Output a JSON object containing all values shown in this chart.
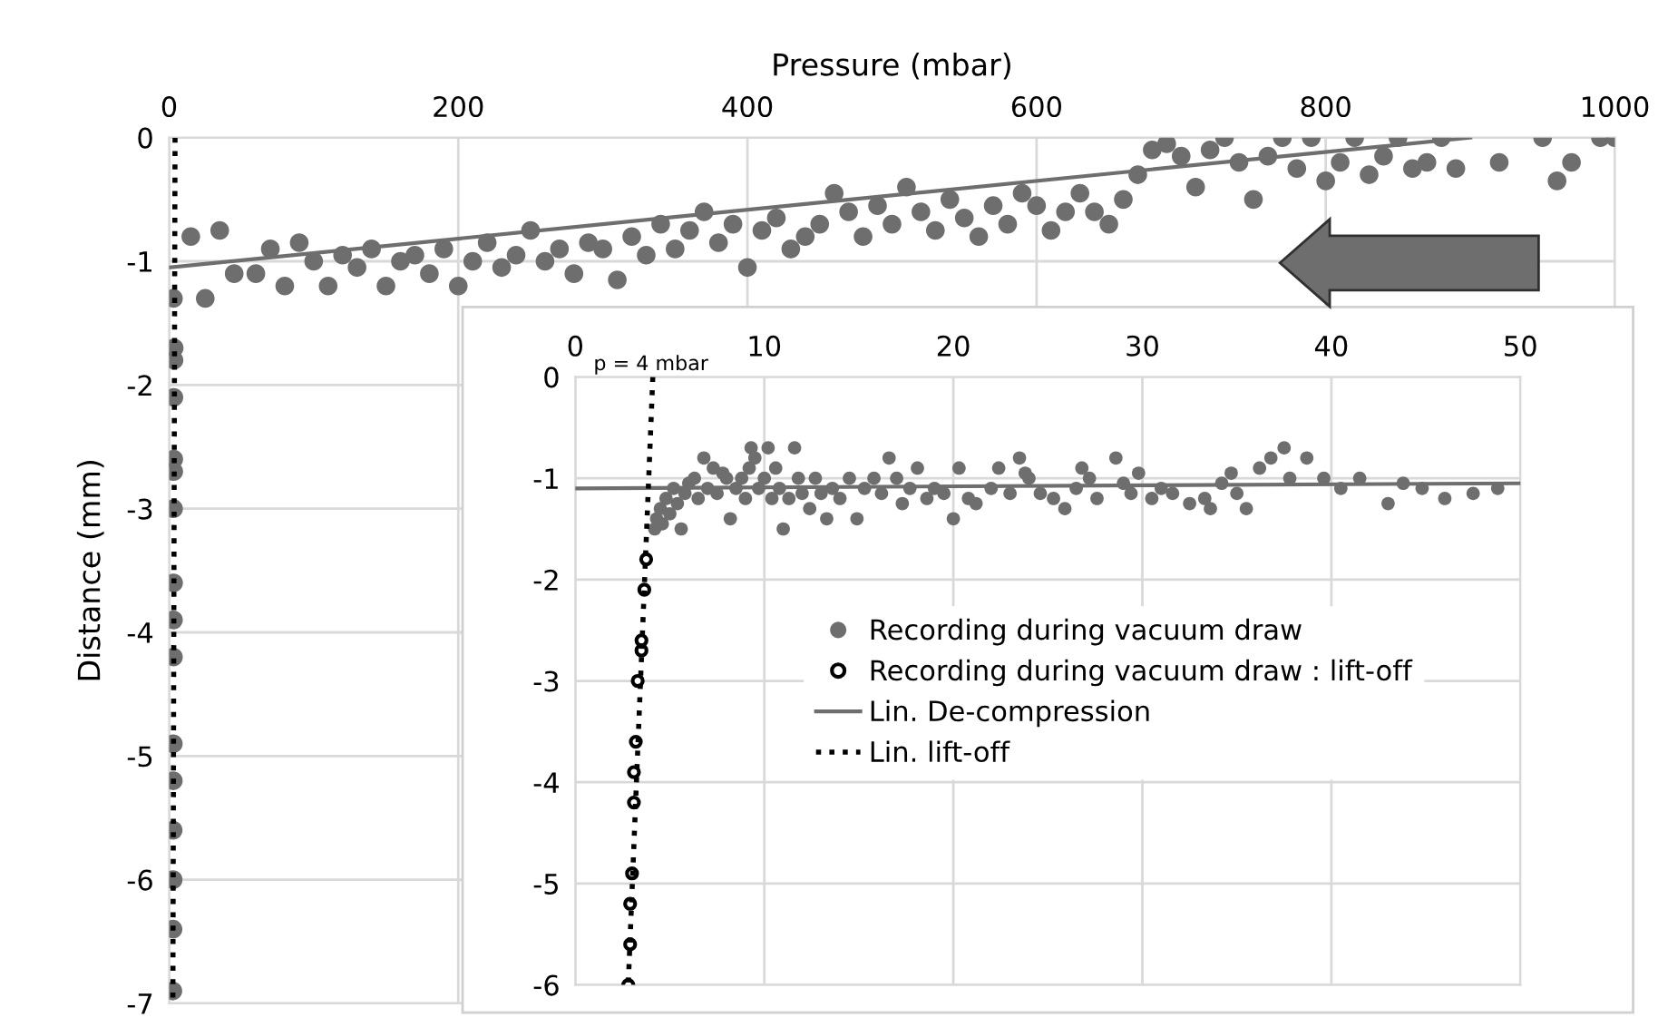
{
  "chart_data": [
    {
      "type": "scatter",
      "xlabel": "Pressure (mbar)",
      "ylabel": "Distance (mm)",
      "xlim": [
        0,
        1000
      ],
      "ylim": [
        -7,
        0
      ],
      "xticks": [
        0,
        200,
        400,
        600,
        800,
        1000
      ],
      "yticks": [
        0,
        -1,
        -2,
        -3,
        -4,
        -5,
        -6,
        -7
      ],
      "grid": true,
      "legend": false,
      "series": [
        {
          "color": "#6e6e6e",
          "marker": "circle",
          "x": [
            60,
            70,
            80,
            90,
            100,
            110,
            120,
            130,
            140,
            150,
            160,
            170,
            180,
            190,
            200,
            210,
            220,
            230,
            240,
            250,
            260,
            270,
            280,
            290,
            300,
            310,
            320,
            330,
            340,
            350,
            360,
            370,
            380,
            390,
            400,
            410,
            420,
            430,
            440,
            450,
            460,
            470,
            480,
            490,
            500,
            510,
            520,
            530,
            540,
            550,
            560,
            570,
            580,
            590,
            600,
            610,
            620,
            630,
            640,
            650,
            660,
            670,
            680,
            690,
            700,
            710,
            720,
            730,
            740,
            750,
            760,
            770,
            780,
            790,
            800,
            810,
            820,
            830,
            840,
            850,
            860,
            870,
            880,
            890,
            920,
            950,
            960,
            970,
            990,
            1000,
            3,
            15,
            25,
            35,
            45,
            3.5,
            3.4,
            3.3,
            3.2,
            3.2,
            3.1,
            3.1,
            3.0,
            3.0,
            2.9,
            2.9,
            2.8,
            2.8,
            2.7,
            2.6
          ],
          "values": [
            -1.1,
            -0.9,
            -1.2,
            -0.85,
            -1.0,
            -1.2,
            -0.95,
            -1.05,
            -0.9,
            -1.2,
            -1.0,
            -0.95,
            -1.1,
            -0.9,
            -1.2,
            -1.0,
            -0.85,
            -1.05,
            -0.95,
            -0.75,
            -1.0,
            -0.9,
            -1.1,
            -0.85,
            -0.9,
            -1.15,
            -0.8,
            -0.95,
            -0.7,
            -0.9,
            -0.75,
            -0.6,
            -0.85,
            -0.7,
            -1.05,
            -0.75,
            -0.65,
            -0.9,
            -0.8,
            -0.7,
            -0.45,
            -0.6,
            -0.8,
            -0.55,
            -0.7,
            -0.4,
            -0.6,
            -0.75,
            -0.5,
            -0.65,
            -0.8,
            -0.55,
            -0.7,
            -0.45,
            -0.55,
            -0.75,
            -0.6,
            -0.45,
            -0.6,
            -0.7,
            -0.5,
            -0.3,
            -0.1,
            -0.05,
            -0.15,
            -0.4,
            -0.1,
            0.0,
            -0.2,
            -0.5,
            -0.15,
            0.0,
            -0.25,
            0.0,
            -0.35,
            -0.2,
            0.0,
            -0.3,
            -0.15,
            0.0,
            -0.25,
            -0.2,
            0.0,
            -0.25,
            -0.2,
            0.0,
            -0.35,
            -0.2,
            0.0,
            0.0,
            -1.3,
            -0.8,
            -1.3,
            -0.75,
            -1.1,
            -1.7,
            -1.8,
            -2.1,
            -2.6,
            -2.7,
            -3.0,
            -3.6,
            -3.9,
            -4.2,
            -4.9,
            -5.2,
            -5.6,
            -6.0,
            -6.4,
            -6.9
          ]
        },
        {
          "type": "line",
          "color": "#6e6e6e",
          "line_style": "solid",
          "marker": "none",
          "x": [
            0,
            900
          ],
          "values": [
            -1.05,
            0
          ]
        },
        {
          "type": "line",
          "color": "#000000",
          "line_style": "dotted",
          "marker": "none",
          "x": [
            4.1,
            2.6
          ],
          "values": [
            0,
            -7
          ]
        }
      ]
    },
    {
      "type": "scatter",
      "xlim": [
        0,
        50
      ],
      "ylim": [
        -6,
        0
      ],
      "xticks": [
        0,
        10,
        20,
        30,
        40,
        50
      ],
      "yticks": [
        0,
        -1,
        -2,
        -3,
        -4,
        -5,
        -6
      ],
      "grid": true,
      "legend": "center",
      "annotations": [
        {
          "text": "p = 4 mbar",
          "x": 4,
          "y": 0
        }
      ],
      "series": [
        {
          "name": "Recording during vacuum draw",
          "color": "#6e6e6e",
          "marker": "circle",
          "x": [
            4.2,
            4.3,
            4.5,
            4.6,
            4.8,
            5.0,
            5.2,
            5.4,
            5.6,
            5.8,
            6.0,
            6.3,
            6.5,
            6.8,
            7.0,
            7.3,
            7.5,
            7.8,
            8.0,
            8.2,
            8.5,
            8.8,
            9.0,
            9.2,
            9.3,
            9.5,
            9.7,
            10.0,
            10.2,
            10.4,
            10.6,
            10.8,
            11.0,
            11.3,
            11.6,
            11.8,
            12.0,
            12.4,
            12.7,
            13.0,
            13.3,
            13.6,
            14.0,
            14.5,
            14.9,
            15.3,
            15.8,
            16.2,
            16.6,
            17.0,
            17.3,
            17.7,
            18.1,
            18.6,
            19.0,
            19.5,
            20.0,
            20.3,
            20.8,
            21.2,
            22.0,
            22.4,
            23.0,
            23.5,
            23.8,
            24.0,
            24.6,
            25.3,
            25.9,
            26.5,
            26.8,
            27.2,
            27.6,
            28.6,
            29.0,
            29.4,
            29.8,
            30.5,
            31.0,
            31.6,
            32.5,
            33.3,
            33.6,
            34.2,
            34.7,
            35.0,
            35.5,
            36.2,
            36.8,
            37.5,
            37.8,
            38.7,
            39.6,
            40.5,
            41.5,
            43.0,
            43.8,
            44.8,
            46.0,
            47.5,
            48.8
          ],
          "values": [
            -1.5,
            -1.4,
            -1.3,
            -1.45,
            -1.2,
            -1.35,
            -1.1,
            -1.25,
            -1.5,
            -1.15,
            -1.05,
            -1.0,
            -1.2,
            -0.8,
            -1.1,
            -0.9,
            -1.15,
            -0.95,
            -1.0,
            -1.4,
            -1.1,
            -1.0,
            -1.2,
            -0.9,
            -0.7,
            -0.8,
            -1.1,
            -1.0,
            -0.7,
            -1.2,
            -0.9,
            -1.1,
            -1.5,
            -1.2,
            -0.7,
            -1.0,
            -1.15,
            -1.3,
            -1.0,
            -1.15,
            -1.4,
            -1.1,
            -1.2,
            -1.0,
            -1.4,
            -1.1,
            -1.0,
            -1.15,
            -0.8,
            -1.0,
            -1.25,
            -1.1,
            -0.9,
            -1.2,
            -1.1,
            -1.15,
            -1.4,
            -0.9,
            -1.2,
            -1.25,
            -1.1,
            -0.9,
            -1.15,
            -0.8,
            -0.95,
            -1.0,
            -1.15,
            -1.2,
            -1.3,
            -1.1,
            -0.9,
            -1.0,
            -1.2,
            -0.8,
            -1.05,
            -1.15,
            -0.95,
            -1.2,
            -1.1,
            -1.15,
            -1.25,
            -1.2,
            -1.3,
            -1.05,
            -0.95,
            -1.15,
            -1.3,
            -0.9,
            -0.8,
            -0.7,
            -1.0,
            -0.8,
            -1.0,
            -1.1,
            -1.0,
            -1.25,
            -1.05,
            -1.1,
            -1.2,
            -1.15,
            -1.1
          ]
        },
        {
          "name": "Recording during vacuum draw : lift-off",
          "color": "#000000",
          "marker": "circle",
          "x": [
            3.75,
            3.65,
            3.5,
            3.5,
            3.3,
            3.2,
            3.1,
            3.1,
            3.0,
            2.9,
            2.9,
            2.8
          ],
          "values": [
            -1.8,
            -2.1,
            -2.6,
            -2.7,
            -3.0,
            -3.6,
            -3.9,
            -4.2,
            -4.9,
            -5.2,
            -5.6,
            -6.0
          ]
        },
        {
          "type": "line",
          "name": "Lin. De-compression",
          "color": "#6e6e6e",
          "line_style": "solid",
          "marker": "none",
          "x": [
            0,
            50
          ],
          "values": [
            -1.1,
            -1.05
          ]
        },
        {
          "type": "line",
          "name": "Lin. lift-off",
          "color": "#000000",
          "line_style": "dotted",
          "marker": "none",
          "x": [
            4.1,
            2.8
          ],
          "values": [
            0,
            -6
          ]
        }
      ]
    }
  ]
}
